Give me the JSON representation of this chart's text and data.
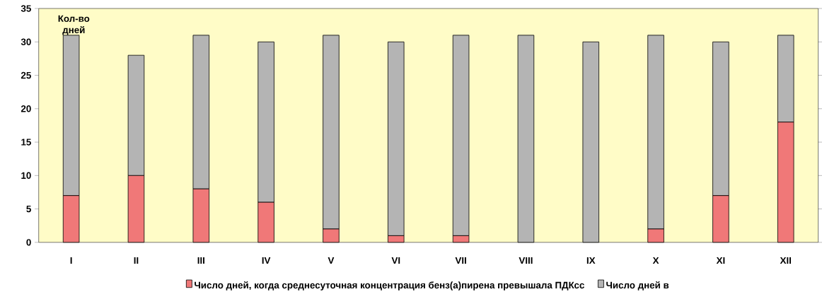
{
  "chart_data": {
    "type": "bar",
    "stacked": true,
    "ylabel": "Кол-во дней",
    "categories": [
      "I",
      "II",
      "III",
      "IV",
      "V",
      "VI",
      "VII",
      "VIII",
      "IX",
      "X",
      "XI",
      "XII"
    ],
    "series": [
      {
        "name": "Число дней, когда среднесуточная концентрация бенз(а)пирена превышала ПДКсс",
        "color": "#f07878",
        "values": [
          7,
          10,
          8,
          6,
          2,
          1,
          1,
          0,
          0,
          2,
          7,
          18
        ]
      },
      {
        "name": "Число дней в",
        "color": "#b4b4b4",
        "values": [
          24,
          18,
          23,
          24,
          29,
          29,
          30,
          31,
          30,
          29,
          23,
          13
        ]
      }
    ],
    "ylim": [
      0,
      35
    ],
    "yticks": [
      0,
      5,
      10,
      15,
      20,
      25,
      30,
      35
    ],
    "legend": "bottom",
    "grid": false
  }
}
